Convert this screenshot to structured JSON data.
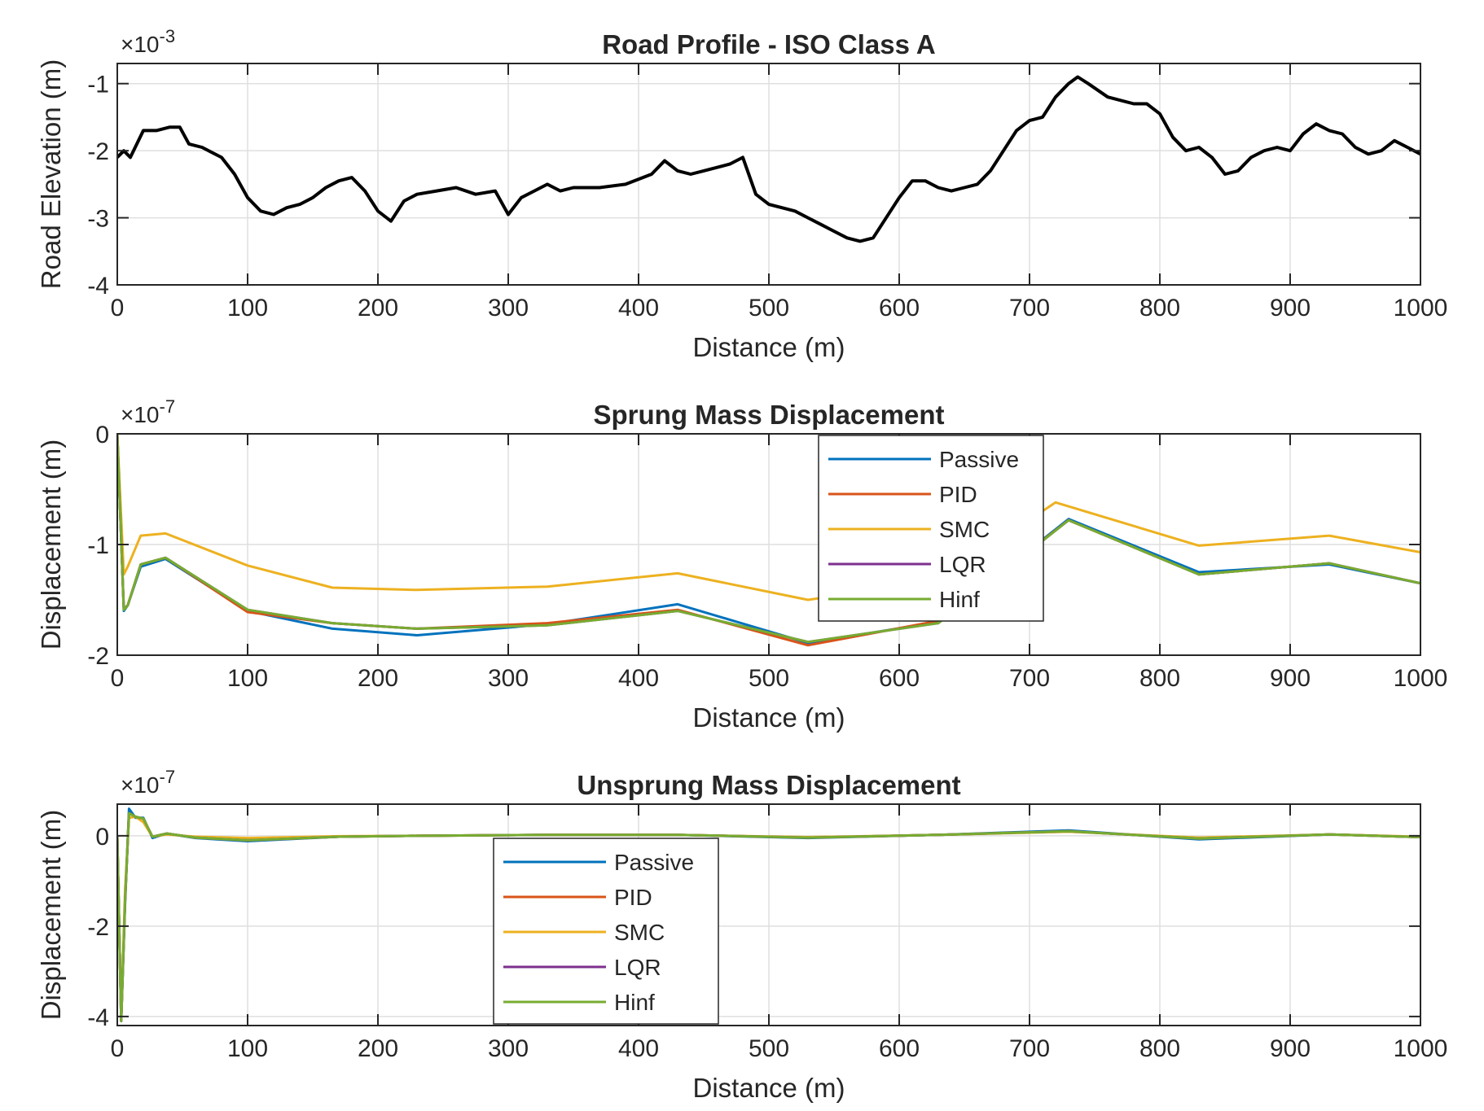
{
  "chart_data": [
    {
      "type": "line",
      "title": "Road Profile - ISO Class A",
      "xlabel": "Distance (m)",
      "ylabel": "Road Elevation (m)",
      "exponent_base": "×10",
      "exponent": "-3",
      "xlim": [
        0,
        1000
      ],
      "ylim": [
        -4,
        -0.7
      ],
      "xticks": [
        0,
        100,
        200,
        300,
        400,
        500,
        600,
        700,
        800,
        900,
        1000
      ],
      "yticks": [
        -4,
        -3,
        -2,
        -1
      ],
      "grid": true,
      "legend": null,
      "series": [
        {
          "color": "#000000",
          "x": [
            0,
            5,
            10,
            20,
            30,
            40,
            48,
            55,
            65,
            80,
            90,
            100,
            110,
            120,
            130,
            140,
            150,
            160,
            170,
            180,
            190,
            200,
            210,
            220,
            230,
            245,
            260,
            275,
            290,
            300,
            310,
            320,
            330,
            340,
            350,
            370,
            390,
            410,
            420,
            430,
            440,
            450,
            470,
            480,
            490,
            500,
            510,
            520,
            530,
            540,
            550,
            560,
            570,
            580,
            590,
            600,
            610,
            620,
            630,
            640,
            650,
            660,
            670,
            680,
            690,
            700,
            710,
            720,
            730,
            737,
            745,
            760,
            780,
            790,
            800,
            810,
            820,
            830,
            840,
            850,
            860,
            870,
            880,
            890,
            900,
            910,
            920,
            930,
            940,
            950,
            960,
            970,
            980,
            990,
            1000
          ],
          "y": [
            -2.1,
            -2.0,
            -2.1,
            -1.7,
            -1.7,
            -1.65,
            -1.65,
            -1.9,
            -1.95,
            -2.1,
            -2.35,
            -2.7,
            -2.9,
            -2.95,
            -2.85,
            -2.8,
            -2.7,
            -2.55,
            -2.45,
            -2.4,
            -2.6,
            -2.9,
            -3.05,
            -2.75,
            -2.65,
            -2.6,
            -2.55,
            -2.65,
            -2.6,
            -2.95,
            -2.7,
            -2.6,
            -2.5,
            -2.6,
            -2.55,
            -2.55,
            -2.5,
            -2.35,
            -2.15,
            -2.3,
            -2.35,
            -2.3,
            -2.2,
            -2.1,
            -2.65,
            -2.8,
            -2.85,
            -2.9,
            -3.0,
            -3.1,
            -3.2,
            -3.3,
            -3.35,
            -3.3,
            -3.0,
            -2.7,
            -2.45,
            -2.45,
            -2.55,
            -2.6,
            -2.55,
            -2.5,
            -2.3,
            -2.0,
            -1.7,
            -1.55,
            -1.5,
            -1.2,
            -1.0,
            -0.9,
            -1.0,
            -1.2,
            -1.3,
            -1.3,
            -1.45,
            -1.8,
            -2.0,
            -1.95,
            -2.1,
            -2.35,
            -2.3,
            -2.1,
            -2.0,
            -1.95,
            -2.0,
            -1.75,
            -1.6,
            -1.7,
            -1.75,
            -1.95,
            -2.05,
            -2.0,
            -1.85,
            -1.95,
            -2.05
          ]
        }
      ]
    },
    {
      "type": "line",
      "title": "Sprung Mass Displacement",
      "xlabel": "Distance (m)",
      "ylabel": "Displacement (m)",
      "exponent_base": "×10",
      "exponent": "-7",
      "xlim": [
        0,
        1000
      ],
      "ylim": [
        -2,
        0
      ],
      "xticks": [
        0,
        100,
        200,
        300,
        400,
        500,
        600,
        700,
        800,
        900,
        1000
      ],
      "yticks": [
        -2,
        -1,
        0
      ],
      "grid": true,
      "legend": "top-center",
      "series": [
        {
          "name": "Passive",
          "color": "#0072BD",
          "x": [
            0,
            5,
            8,
            18,
            37,
            100,
            165,
            230,
            330,
            430,
            530,
            630,
            730,
            830,
            930,
            1000
          ],
          "y": [
            0,
            -1.6,
            -1.55,
            -1.2,
            -1.13,
            -1.6,
            -1.76,
            -1.82,
            -1.72,
            -1.54,
            -1.89,
            -1.7,
            -0.77,
            -1.25,
            -1.18,
            -1.35
          ]
        },
        {
          "name": "PID",
          "color": "#D95319",
          "x": [
            0,
            5,
            8,
            18,
            37,
            100,
            165,
            230,
            330,
            430,
            530,
            630,
            730,
            830,
            930,
            1000
          ],
          "y": [
            0,
            -1.58,
            -1.55,
            -1.18,
            -1.12,
            -1.61,
            -1.71,
            -1.76,
            -1.71,
            -1.59,
            -1.91,
            -1.69,
            -0.78,
            -1.27,
            -1.17,
            -1.35
          ]
        },
        {
          "name": "SMC",
          "color": "#EDB120",
          "x": [
            0,
            5,
            8,
            18,
            37,
            100,
            165,
            230,
            330,
            430,
            530,
            630,
            720,
            830,
            930,
            1000
          ],
          "y": [
            0,
            -1.27,
            -1.2,
            -0.92,
            -0.9,
            -1.19,
            -1.39,
            -1.41,
            -1.38,
            -1.26,
            -1.5,
            -1.33,
            -0.62,
            -1.01,
            -0.92,
            -1.07
          ]
        },
        {
          "name": "LQR",
          "color": "#7E2F8E",
          "x": [
            0,
            5,
            8,
            18,
            37,
            100,
            165,
            230,
            330,
            430,
            530,
            630,
            730,
            830,
            930,
            1000
          ],
          "y": [
            0,
            -1.59,
            -1.55,
            -1.18,
            -1.12,
            -1.59,
            -1.71,
            -1.76,
            -1.73,
            -1.6,
            -1.88,
            -1.71,
            -0.78,
            -1.27,
            -1.17,
            -1.35
          ]
        },
        {
          "name": "Hinf",
          "color": "#77AC30",
          "x": [
            0,
            5,
            8,
            18,
            37,
            100,
            165,
            230,
            330,
            430,
            530,
            630,
            730,
            830,
            930,
            1000
          ],
          "y": [
            0,
            -1.59,
            -1.55,
            -1.18,
            -1.12,
            -1.59,
            -1.71,
            -1.76,
            -1.73,
            -1.6,
            -1.88,
            -1.71,
            -0.78,
            -1.27,
            -1.17,
            -1.35
          ]
        }
      ]
    },
    {
      "type": "line",
      "title": "Unsprung Mass Displacement",
      "xlabel": "Distance (m)",
      "ylabel": "Displacement (m)",
      "exponent_base": "×10",
      "exponent": "-7",
      "xlim": [
        0,
        1000
      ],
      "ylim": [
        -4.2,
        0.7
      ],
      "xticks": [
        0,
        100,
        200,
        300,
        400,
        500,
        600,
        700,
        800,
        900,
        1000
      ],
      "yticks": [
        -4,
        -2,
        0
      ],
      "grid": true,
      "legend": "bottom-left",
      "series": [
        {
          "name": "Passive",
          "color": "#0072BD",
          "x": [
            0,
            3,
            6,
            9,
            14,
            20,
            27,
            38,
            60,
            100,
            170,
            230,
            330,
            430,
            530,
            630,
            730,
            830,
            930,
            1000
          ],
          "y": [
            0,
            -4.1,
            -1.5,
            0.6,
            0.4,
            0.4,
            -0.05,
            0.05,
            -0.05,
            -0.12,
            -0.02,
            0.0,
            0.02,
            0.02,
            -0.05,
            0.02,
            0.12,
            -0.08,
            0.03,
            -0.03
          ]
        },
        {
          "name": "PID",
          "color": "#D95319",
          "x": [
            0,
            3,
            6,
            9,
            14,
            20,
            27,
            38,
            60,
            100,
            170,
            230,
            330,
            430,
            530,
            630,
            730,
            830,
            930,
            1000
          ],
          "y": [
            0,
            -4.1,
            -1.4,
            0.5,
            0.42,
            0.38,
            -0.02,
            0.05,
            -0.04,
            -0.1,
            -0.02,
            0.0,
            0.02,
            0.02,
            -0.04,
            0.02,
            0.1,
            -0.06,
            0.03,
            -0.03
          ]
        },
        {
          "name": "SMC",
          "color": "#EDB120",
          "x": [
            0,
            3,
            6,
            9,
            14,
            20,
            27,
            38,
            60,
            100,
            170,
            230,
            330,
            430,
            530,
            630,
            730,
            830,
            930,
            1000
          ],
          "y": [
            0,
            -4.0,
            -1.2,
            0.4,
            0.42,
            0.3,
            -0.02,
            0.03,
            -0.02,
            -0.05,
            -0.01,
            0.0,
            0.02,
            0.02,
            -0.03,
            0.02,
            0.09,
            -0.04,
            0.03,
            -0.02
          ]
        },
        {
          "name": "LQR",
          "color": "#7E2F8E",
          "x": [
            0,
            3,
            6,
            9,
            14,
            20,
            27,
            38,
            60,
            100,
            170,
            230,
            330,
            430,
            530,
            630,
            730,
            830,
            930,
            1000
          ],
          "y": [
            0,
            -4.1,
            -1.4,
            0.5,
            0.42,
            0.38,
            -0.02,
            0.05,
            -0.04,
            -0.1,
            -0.02,
            0.0,
            0.02,
            0.02,
            -0.04,
            0.02,
            0.1,
            -0.06,
            0.03,
            -0.03
          ]
        },
        {
          "name": "Hinf",
          "color": "#77AC30",
          "x": [
            0,
            3,
            6,
            9,
            14,
            20,
            27,
            38,
            60,
            100,
            170,
            230,
            330,
            430,
            530,
            630,
            730,
            830,
            930,
            1000
          ],
          "y": [
            0,
            -4.1,
            -1.4,
            0.5,
            0.42,
            0.38,
            -0.02,
            0.05,
            -0.04,
            -0.1,
            -0.02,
            0.0,
            0.02,
            0.02,
            -0.04,
            0.02,
            0.1,
            -0.06,
            0.03,
            -0.03
          ]
        }
      ]
    }
  ]
}
